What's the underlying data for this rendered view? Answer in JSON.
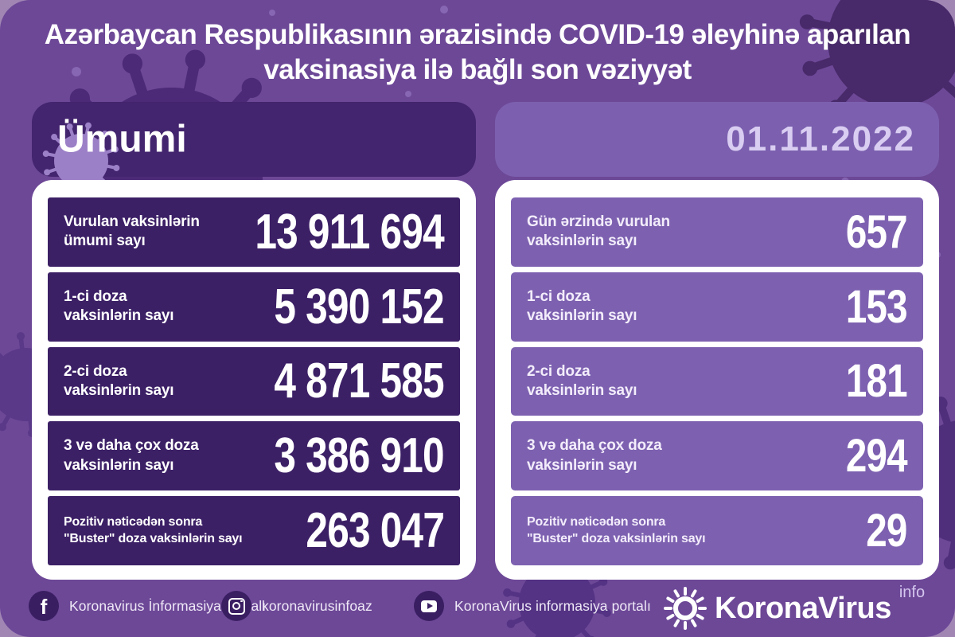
{
  "title": {
    "line1": "Azərbaycan Respublikasının ərazisində COVID-19 əleyhinə aparılan",
    "line2": "vaksinasiya ilə bağlı son vəziyyət"
  },
  "left_panel": {
    "header": "Ümumi",
    "rows": [
      {
        "label_line1": "Vurulan vaksinlərin",
        "label_line2": "ümumi sayı",
        "value": "13 911 694"
      },
      {
        "label_line1": "1-ci doza",
        "label_line2": "vaksinlərin sayı",
        "value": "5 390 152"
      },
      {
        "label_line1": "2-ci doza",
        "label_line2": "vaksinlərin sayı",
        "value": "4 871 585"
      },
      {
        "label_line1": "3 və daha çox doza",
        "label_line2": "vaksinlərin sayı",
        "value": "3 386 910"
      },
      {
        "label_line1": "Pozitiv nəticədən sonra",
        "label_line2": "\"Buster\" doza vaksinlərin sayı",
        "value": "263 047"
      }
    ]
  },
  "right_panel": {
    "date": "01.11.2022",
    "rows": [
      {
        "label_line1": "Gün ərzində vurulan",
        "label_line2": "vaksinlərin sayı",
        "value": "657"
      },
      {
        "label_line1": "1-ci doza",
        "label_line2": "vaksinlərin sayı",
        "value": "153"
      },
      {
        "label_line1": "2-ci doza",
        "label_line2": "vaksinlərin sayı",
        "value": "181"
      },
      {
        "label_line1": "3 və daha çox doza",
        "label_line2": "vaksinlərin sayı",
        "value": "294"
      },
      {
        "label_line1": "Pozitiv nəticədən sonra",
        "label_line2": "\"Buster\" doza vaksinlərin sayı",
        "value": "29"
      }
    ]
  },
  "footer": {
    "facebook_label": "Koronavirus İnformasiya Portalı",
    "instagram_label": "koronavirusinfoaz",
    "youtube_label": "KoronaVirus informasiya portalı",
    "logo_text": "KoronaVirus",
    "logo_superscript": "info"
  },
  "colors": {
    "outer_background": "#a186b4",
    "main_background": "#6d4897",
    "dark_box": "#3c2066",
    "dark_header": "#43246e",
    "mid_box": "#7d61b0",
    "mid_header": "#7c60af",
    "date_text": "#d9cdf2",
    "panel_white": "#ffffff"
  },
  "chart_data": {
    "type": "table",
    "title": "Azərbaycan Respublikasının ərazisində COVID-19 əleyhinə aparılan vaksinasiya ilə bağlı son vəziyyət",
    "date": "01.11.2022",
    "categories": [
      "Vurulan vaksinlərin ümumi sayı",
      "1-ci doza vaksinlərin sayı",
      "2-ci doza vaksinlərin sayı",
      "3 və daha çox doza vaksinlərin sayı",
      "Pozitiv nəticədən sonra \"Buster\" doza vaksinlərin sayı"
    ],
    "series": [
      {
        "name": "Ümumi",
        "values": [
          13911694,
          5390152,
          4871585,
          3386910,
          263047
        ]
      },
      {
        "name": "01.11.2022 (gün ərzində)",
        "values": [
          657,
          153,
          181,
          294,
          29
        ]
      }
    ]
  }
}
